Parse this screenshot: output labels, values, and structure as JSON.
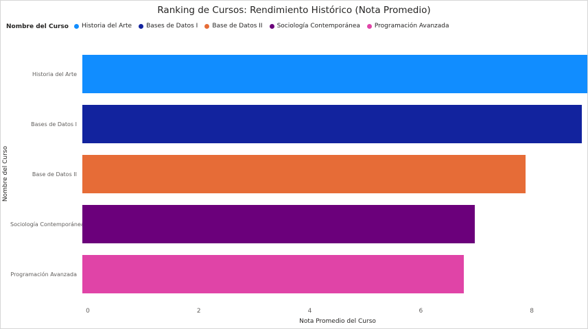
{
  "chart_data": {
    "type": "bar",
    "orientation": "horizontal",
    "title": "Ranking de Cursos: Rendimiento Histórico (Nota Promedio)",
    "categories": [
      "Historia del Arte",
      "Bases de Datos I",
      "Base de Datos II",
      "Sociología Contemporánea",
      "Programación Avanzada"
    ],
    "values": [
      9.0,
      8.9,
      7.9,
      7.0,
      6.8
    ],
    "colors": [
      "#118DFF",
      "#12239E",
      "#E66C37",
      "#6B007B",
      "#E044A7"
    ],
    "xlabel": "Nota Promedio del Curso",
    "ylabel": "Nombre del Curso",
    "xlim": [
      0,
      9
    ],
    "xticks": [
      0,
      2,
      4,
      6,
      8
    ],
    "grid": false,
    "legend": {
      "title": "Nombre del Curso",
      "position": "top-left",
      "entries": [
        "Historia del Arte",
        "Bases de Datos I",
        "Base de Datos II",
        "Sociología Contemporánea",
        "Programación Avanzada"
      ]
    }
  }
}
